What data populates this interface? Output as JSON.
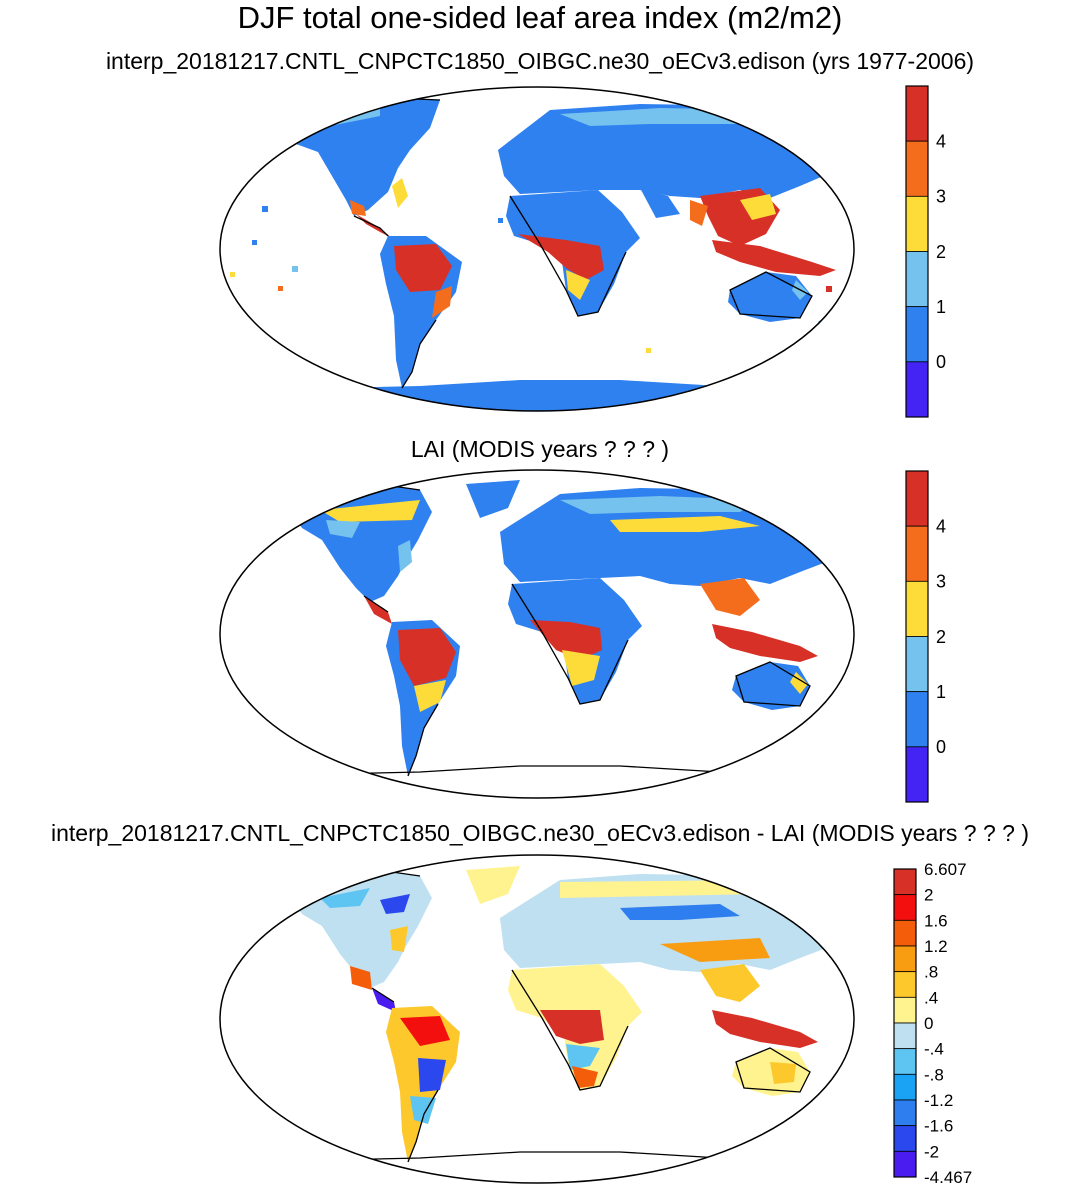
{
  "main_title": "DJF total one-sided leaf area index (m2/m2)",
  "panels": [
    {
      "title": "interp_20181217.CNTL_CNPCTC1850_OIBGC.ne30_oECv3.edison (yrs 1977-2006)",
      "colorbar": {
        "labels": [
          "4",
          "3",
          "2",
          "1",
          "0"
        ],
        "colors": [
          "#d73027",
          "#f46d1c",
          "#fddc3a",
          "#74c2ed",
          "#2f81ef",
          "#4424f5"
        ]
      }
    },
    {
      "title": "LAI (MODIS years ? ? ? )",
      "colorbar": {
        "labels": [
          "4",
          "3",
          "2",
          "1",
          "0"
        ],
        "colors": [
          "#d73027",
          "#f46d1c",
          "#fddc3a",
          "#74c2ed",
          "#2f81ef",
          "#4424f5"
        ]
      }
    },
    {
      "title": "interp_20181217.CNTL_CNPCTC1850_OIBGC.ne30_oECv3.edison - LAI (MODIS years ? ? ? )",
      "colorbar": {
        "labels": [
          "6.607",
          "2",
          "1.6",
          "1.2",
          ".8",
          ".4",
          "0",
          "-.4",
          "-.8",
          "-1.2",
          "-1.6",
          "-2",
          "-4.467"
        ],
        "colors": [
          "#d73027",
          "#f40f0f",
          "#f45d0a",
          "#f89c12",
          "#fdc82c",
          "#fff390",
          "#bfe0f0",
          "#5ec4f2",
          "#1aa3f5",
          "#2f7ef0",
          "#2a48ee",
          "#4a1cf0"
        ]
      }
    }
  ]
}
